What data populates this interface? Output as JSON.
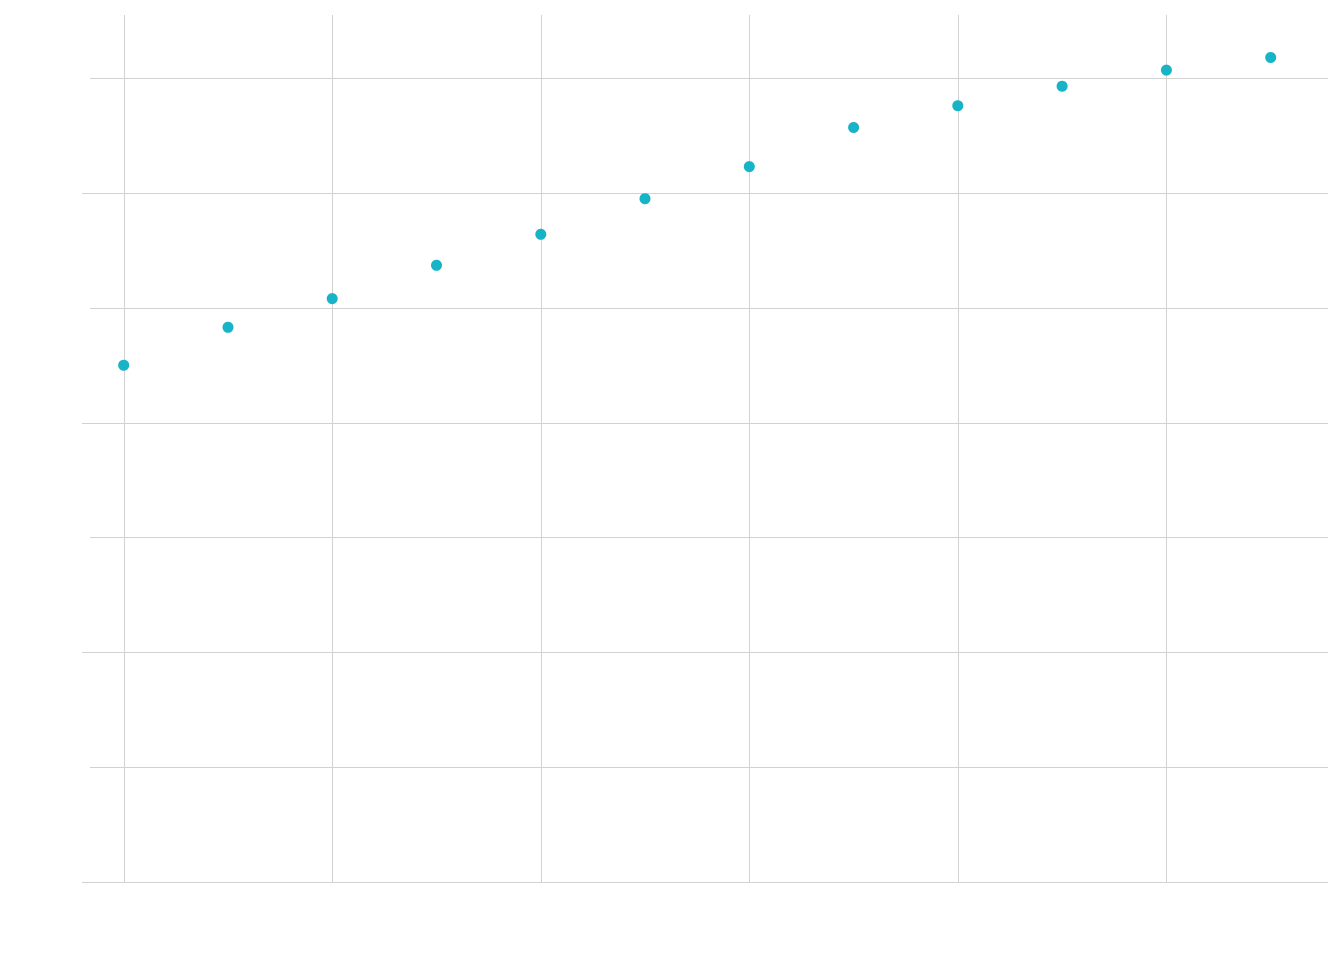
{
  "chart_data": {
    "type": "scatter",
    "title": "",
    "xlabel": "",
    "ylabel": "",
    "grid": true,
    "legend": "none",
    "xlim": [
      -0.4,
      11.55
    ],
    "ylim": [
      0,
      7.55
    ],
    "x_gridlines": [
      0,
      2,
      4,
      6,
      8,
      10
    ],
    "y_gridlines": [
      0,
      1,
      2,
      3,
      4,
      5,
      6,
      7
    ],
    "series": [
      {
        "color": "#17b3c6",
        "x": [
          0,
          1,
          2,
          3,
          4,
          5,
          6,
          7,
          8,
          9,
          10,
          11
        ],
        "y": [
          4.5,
          4.83,
          5.08,
          5.37,
          5.64,
          5.95,
          6.23,
          6.57,
          6.76,
          6.93,
          7.07,
          7.18
        ]
      }
    ]
  }
}
